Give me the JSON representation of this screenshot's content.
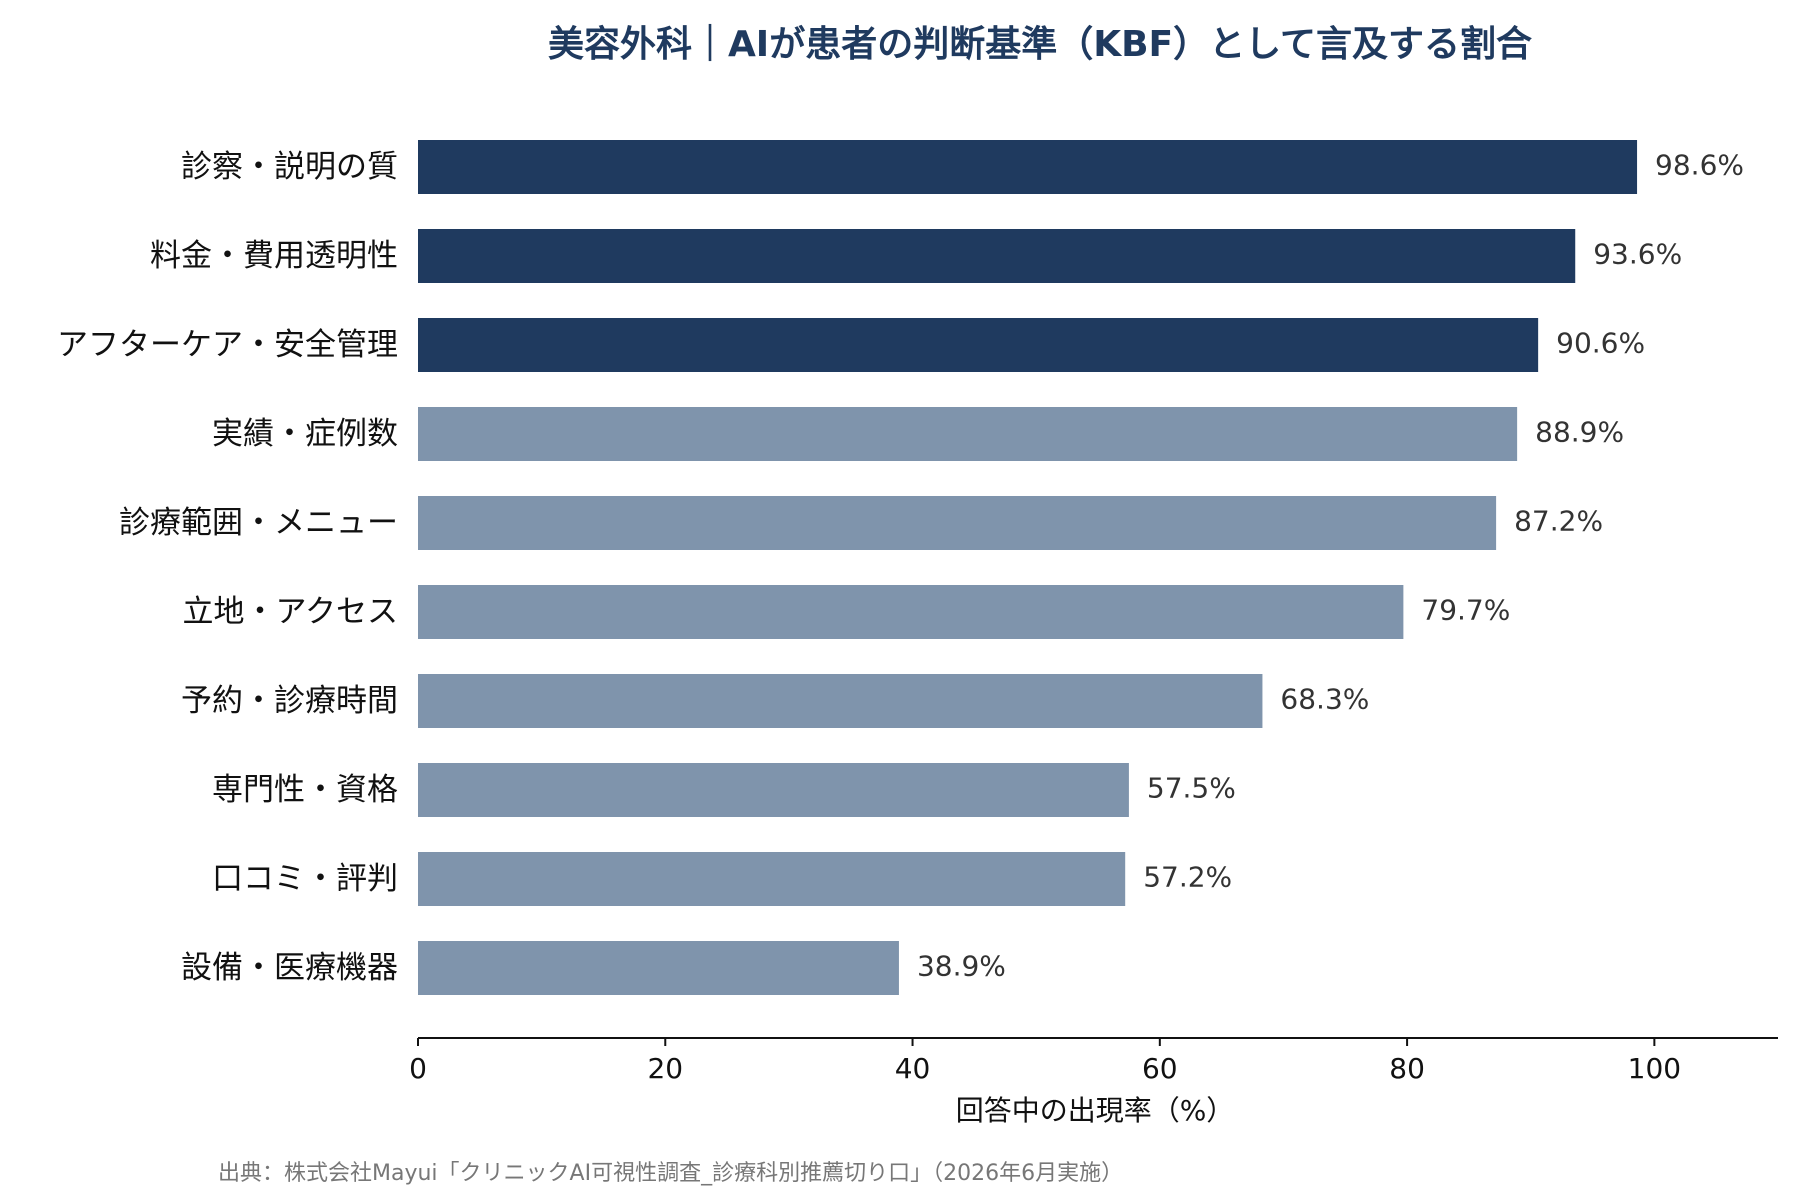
{
  "chart_data": {
    "type": "bar",
    "orientation": "horizontal",
    "title": "美容外科｜AIが患者の判断基準（KBF）として言及する割合",
    "categories": [
      "診察・説明の質",
      "料金・費用透明性",
      "アフターケア・安全管理",
      "実績・症例数",
      "診療範囲・メニュー",
      "立地・アクセス",
      "予約・診療時間",
      "専門性・資格",
      "口コミ・評判",
      "設備・医療機器"
    ],
    "values": [
      98.6,
      93.6,
      90.6,
      88.9,
      87.2,
      79.7,
      68.3,
      57.5,
      57.2,
      38.9
    ],
    "value_labels": [
      "98.6%",
      "93.6%",
      "90.6%",
      "88.9%",
      "87.2%",
      "79.7%",
      "68.3%",
      "57.5%",
      "57.2%",
      "38.9%"
    ],
    "highlight_top_n": 3,
    "colors": {
      "highlight": "#1f3a5f",
      "default": "#7f94ac",
      "title": "#1f3a5f"
    },
    "xlabel": "回答中の出現率（%）",
    "ylabel": "",
    "xlim": [
      0,
      110
    ],
    "xticks": [
      0,
      20,
      40,
      60,
      80,
      100
    ],
    "xtick_labels": [
      "0",
      "20",
      "40",
      "60",
      "80",
      "100"
    ],
    "grid": false,
    "legend": "none"
  },
  "source": "出典：株式会社Mayui「クリニックAI可視性調査_診療科別推薦切り口」（2026年6月実施）"
}
